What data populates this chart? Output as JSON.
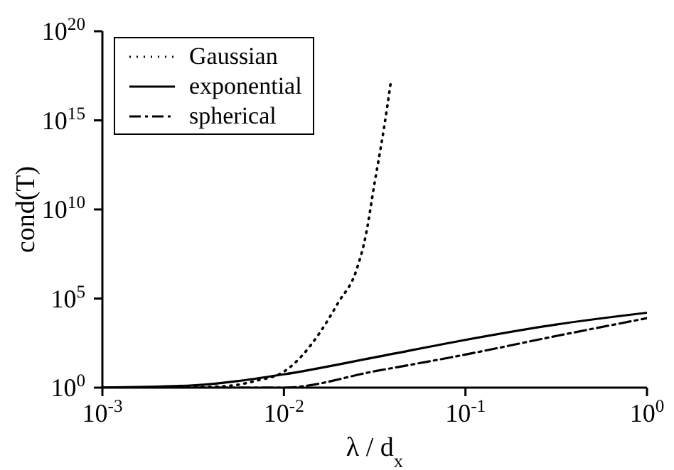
{
  "chart_data": {
    "type": "line",
    "xlabel": "λ / d$_{x}$",
    "ylabel": "cond(T)",
    "log": "xy",
    "grid": false,
    "legend": "top left",
    "marker": "none",
    "xlim": [
      0.001,
      1
    ],
    "xticks": [
      {
        "value": 0.001,
        "label": "10$^{-3}$"
      },
      {
        "value": 0.01,
        "label": "10$^{-2}$"
      },
      {
        "value": 0.1,
        "label": "10$^{-1}$"
      },
      {
        "value": 1,
        "label": "10$^{0}$"
      }
    ],
    "ylim": [
      1,
      1e+20
    ],
    "yticks": [
      {
        "value": 1,
        "label": "10$^{0}$"
      },
      {
        "value": 100000,
        "label": "10$^{5}$"
      },
      {
        "value": 10000000000,
        "label": "10$^{10}$"
      },
      {
        "value": 1000000000000000.0,
        "label": "10$^{15}$"
      },
      {
        "value": 1e+20,
        "label": "10$^{20}$"
      }
    ],
    "series": [
      {
        "name": "Gaussian",
        "color": "#000000",
        "line_style": "dotted",
        "x": [
          0.001,
          0.00316,
          0.005,
          0.0071,
          0.01,
          0.0126,
          0.0158,
          0.02,
          0.0251,
          0.0282,
          0.0316,
          0.0355,
          0.039
        ],
        "values": [
          1,
          1.05,
          1.26,
          2.5,
          7.9,
          63,
          1260,
          63000,
          4000000,
          320000000,
          320000000000,
          320000000000000,
          2e+17
        ]
      },
      {
        "name": "exponential",
        "color": "#000000",
        "line_style": "solid",
        "x": [
          0.001,
          0.00316,
          0.01,
          0.0316,
          0.1,
          0.316,
          1
        ],
        "values": [
          1,
          1.35,
          5.6,
          50,
          480,
          3500,
          16000
        ]
      },
      {
        "name": "spherical",
        "color": "#000000",
        "line_style": "dashdot",
        "x": [
          0.001,
          0.01,
          0.0316,
          0.1,
          0.316,
          1
        ],
        "values": [
          1,
          1,
          8.3,
          72,
          790,
          7900
        ]
      }
    ]
  }
}
